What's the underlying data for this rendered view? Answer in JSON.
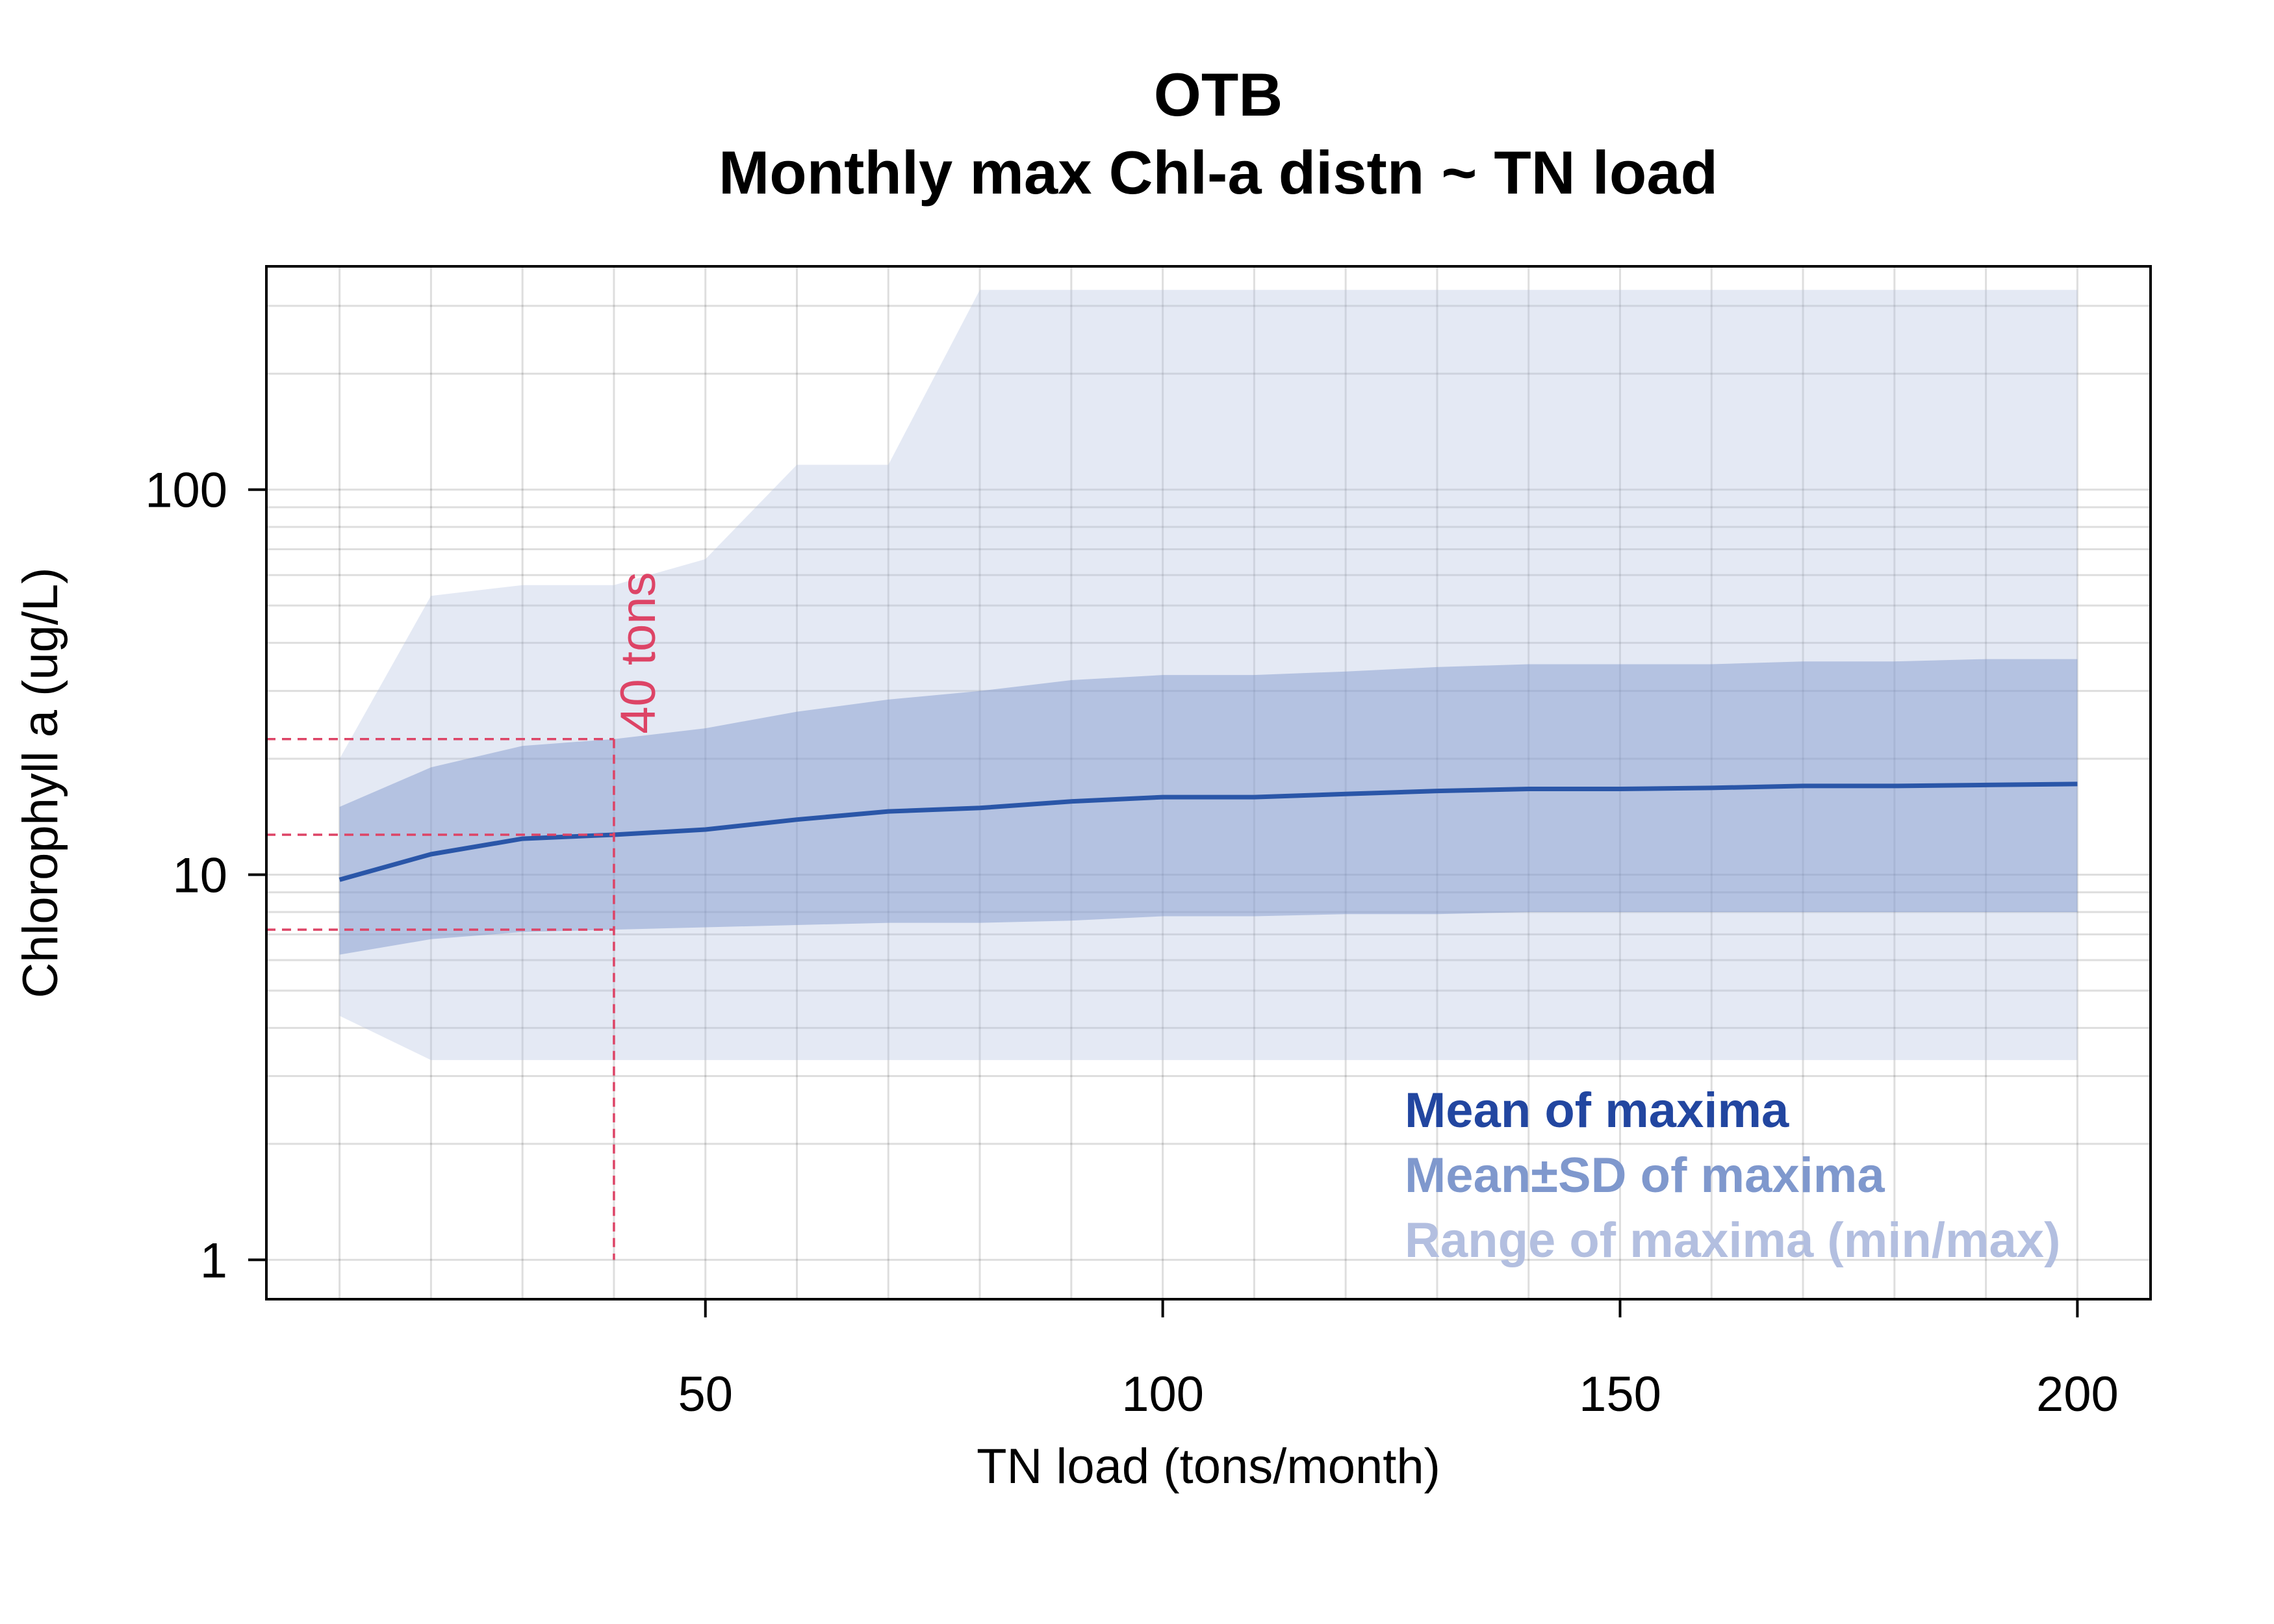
{
  "chart_data": {
    "type": "area",
    "title": "OTB",
    "subtitle": "Monthly max Chl-a distn ~ TN load",
    "xlabel": "TN load (tons/month)",
    "ylabel": "Chlorophyll a (ug/L)",
    "xlim": [
      2,
      208
    ],
    "ylim": [
      0.79,
      380
    ],
    "log_y": true,
    "grid": true,
    "x_ticks": [
      50,
      100,
      150,
      200
    ],
    "y_ticks": [
      1,
      10,
      100
    ],
    "x": [
      10,
      20,
      30,
      40,
      50,
      60,
      70,
      80,
      90,
      100,
      110,
      120,
      130,
      140,
      150,
      160,
      170,
      180,
      190,
      200
    ],
    "series": [
      {
        "name": "Mean of maxima",
        "role": "line",
        "values": [
          9.7,
          11.3,
          12.4,
          12.7,
          13.1,
          13.9,
          14.6,
          14.9,
          15.5,
          15.9,
          15.9,
          16.2,
          16.5,
          16.7,
          16.7,
          16.8,
          17.0,
          17.0,
          17.1,
          17.2
        ],
        "color": "#2a56a8"
      },
      {
        "name": "Mean±SD of maxima",
        "role": "band",
        "lower": [
          6.2,
          6.8,
          7.1,
          7.2,
          7.3,
          7.4,
          7.5,
          7.5,
          7.6,
          7.8,
          7.8,
          7.9,
          7.9,
          8.0,
          8.0,
          8.0,
          8.0,
          8.0,
          8.0,
          8.0
        ],
        "upper": [
          15.0,
          19.0,
          21.6,
          22.5,
          24.0,
          26.5,
          28.5,
          30.0,
          32.0,
          33.0,
          33.0,
          33.7,
          34.6,
          35.2,
          35.2,
          35.2,
          35.8,
          35.8,
          36.3,
          36.3
        ],
        "color": "#7b93ca"
      },
      {
        "name": "Range of maxima (min/max)",
        "role": "band",
        "lower": [
          4.3,
          3.3,
          3.3,
          3.3,
          3.3,
          3.3,
          3.3,
          3.3,
          3.3,
          3.3,
          3.3,
          3.3,
          3.3,
          3.3,
          3.3,
          3.3,
          3.3,
          3.3,
          3.3,
          3.3
        ],
        "upper": [
          20.0,
          53.0,
          56.5,
          56.5,
          66.0,
          116.0,
          116.0,
          330.0,
          330.0,
          330.0,
          330.0,
          330.0,
          330.0,
          330.0,
          330.0,
          330.0,
          330.0,
          330.0,
          330.0,
          330.0
        ],
        "color": "#b3bfe0"
      }
    ],
    "annotation": {
      "label": "40 tons",
      "x": 40,
      "y_levels": [
        22.5,
        12.7,
        7.2
      ],
      "color": "#dd4466"
    },
    "legend": {
      "placement": "bottom-right",
      "entries": [
        {
          "label": "Mean of maxima",
          "color": "#2246a0"
        },
        {
          "label": "Mean±SD of maxima",
          "color": "#7f98cd"
        },
        {
          "label": "Range of maxima (min/max)",
          "color": "#b3bfe0"
        }
      ]
    }
  }
}
